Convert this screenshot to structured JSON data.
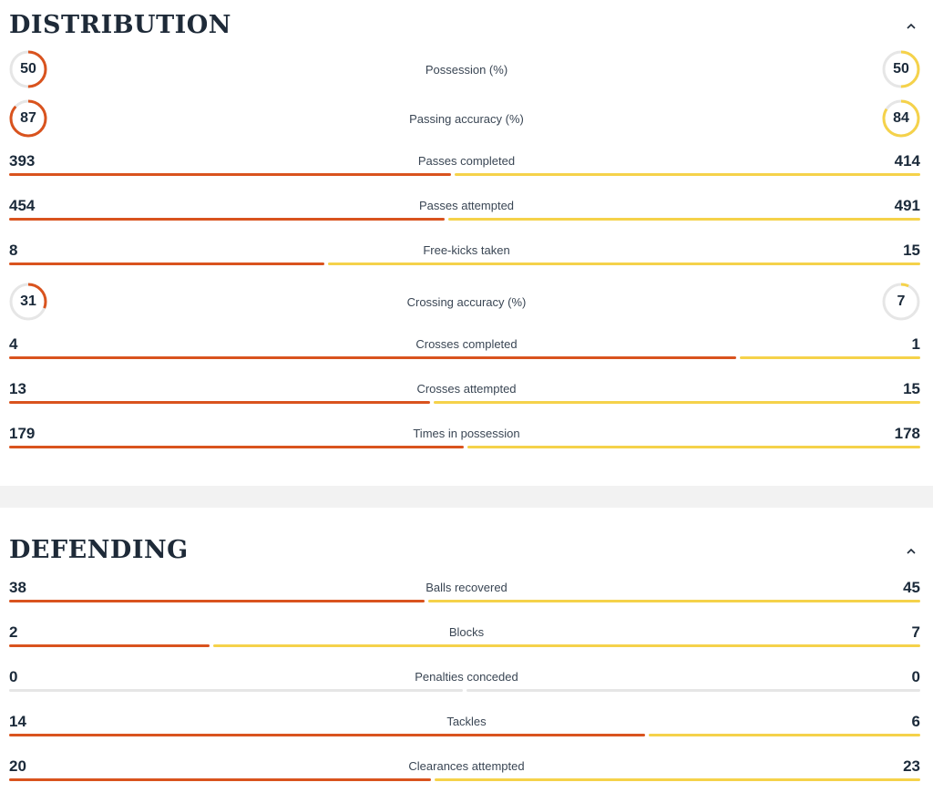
{
  "colors": {
    "home": "#d9531e",
    "away": "#f5d24a",
    "track": "#e6e6e6"
  },
  "icons": {
    "collapse": "chevron-up-icon"
  },
  "distribution": {
    "title": "DISTRIBUTION",
    "stats": [
      {
        "label": "Possession (%)",
        "home": "50",
        "away": "50",
        "kind": "ring"
      },
      {
        "label": "Passing accuracy (%)",
        "home": "87",
        "away": "84",
        "kind": "ring"
      },
      {
        "label": "Passes completed",
        "home": "393",
        "away": "414",
        "kind": "bar"
      },
      {
        "label": "Passes attempted",
        "home": "454",
        "away": "491",
        "kind": "bar"
      },
      {
        "label": "Free-kicks taken",
        "home": "8",
        "away": "15",
        "kind": "bar"
      },
      {
        "label": "Crossing accuracy (%)",
        "home": "31",
        "away": "7",
        "kind": "ring"
      },
      {
        "label": "Crosses completed",
        "home": "4",
        "away": "1",
        "kind": "bar"
      },
      {
        "label": "Crosses attempted",
        "home": "13",
        "away": "15",
        "kind": "bar"
      },
      {
        "label": "Times in possession",
        "home": "179",
        "away": "178",
        "kind": "bar"
      }
    ]
  },
  "defending": {
    "title": "DEFENDING",
    "stats": [
      {
        "label": "Balls recovered",
        "home": "38",
        "away": "45",
        "kind": "bar"
      },
      {
        "label": "Blocks",
        "home": "2",
        "away": "7",
        "kind": "bar"
      },
      {
        "label": "Penalties conceded",
        "home": "0",
        "away": "0",
        "kind": "bar"
      },
      {
        "label": "Tackles",
        "home": "14",
        "away": "6",
        "kind": "bar"
      },
      {
        "label": "Clearances attempted",
        "home": "20",
        "away": "23",
        "kind": "bar"
      }
    ]
  }
}
